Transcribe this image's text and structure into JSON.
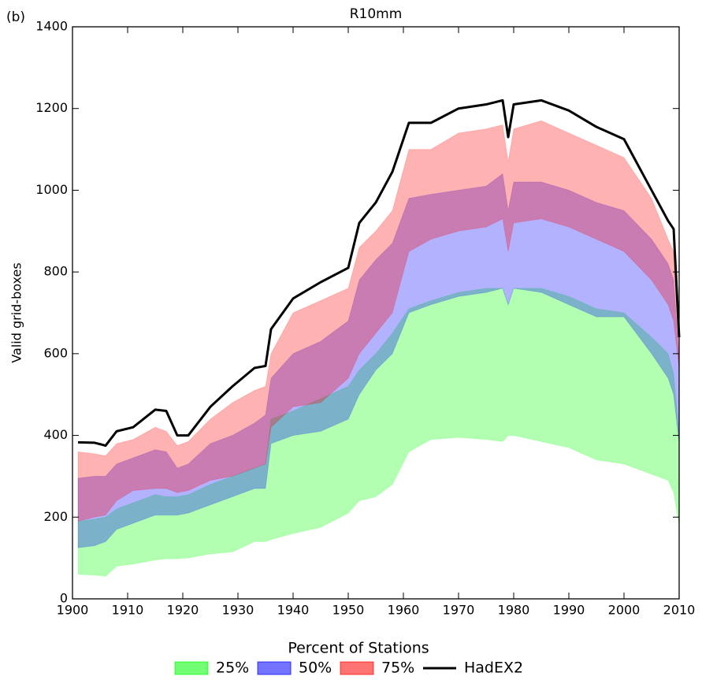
{
  "chart_data": {
    "type": "band",
    "panel_label": "(b)",
    "title": "R10mm",
    "y_label": "Valid grid-boxes",
    "legend_title": "Percent of Stations",
    "legend_position": "bottom",
    "x": [
      1901,
      1904,
      1906,
      1908,
      1911,
      1915,
      1917,
      1919,
      1921,
      1925,
      1929,
      1933,
      1935,
      1936,
      1940,
      1945,
      1950,
      1952,
      1955,
      1958,
      1961,
      1965,
      1970,
      1975,
      1978,
      1979,
      1980,
      1985,
      1990,
      1995,
      2000,
      2005,
      2008,
      2009,
      2010
    ],
    "xlim": [
      1900,
      2010
    ],
    "xticks": [
      1900,
      1910,
      1920,
      1930,
      1940,
      1950,
      1960,
      1970,
      1980,
      1990,
      2000,
      2010
    ],
    "ylim": [
      0,
      1400
    ],
    "yticks": [
      0,
      200,
      400,
      600,
      800,
      1000,
      1200,
      1400
    ],
    "series": [
      {
        "name": "25%",
        "color": "#00ff00",
        "lower": [
          60,
          58,
          55,
          80,
          85,
          95,
          98,
          98,
          100,
          110,
          115,
          140,
          140,
          145,
          160,
          175,
          210,
          240,
          250,
          280,
          360,
          390,
          395,
          390,
          385,
          400,
          400,
          385,
          370,
          340,
          330,
          305,
          290,
          260,
          180
        ],
        "upper": [
          190,
          195,
          200,
          220,
          235,
          255,
          250,
          250,
          255,
          280,
          300,
          320,
          330,
          440,
          460,
          490,
          520,
          560,
          600,
          650,
          710,
          730,
          750,
          760,
          760,
          720,
          760,
          760,
          740,
          710,
          700,
          640,
          600,
          550,
          400
        ]
      },
      {
        "name": "50%",
        "color": "#0000ff",
        "lower": [
          125,
          130,
          140,
          170,
          185,
          205,
          205,
          205,
          210,
          230,
          250,
          270,
          270,
          380,
          400,
          410,
          440,
          500,
          560,
          600,
          700,
          720,
          740,
          750,
          760,
          720,
          760,
          750,
          720,
          690,
          690,
          600,
          540,
          500,
          380
        ],
        "upper": [
          295,
          300,
          300,
          330,
          345,
          365,
          360,
          320,
          330,
          380,
          400,
          430,
          450,
          540,
          600,
          630,
          680,
          780,
          830,
          870,
          980,
          990,
          1000,
          1010,
          1040,
          950,
          1020,
          1020,
          1000,
          970,
          950,
          880,
          820,
          780,
          580
        ]
      },
      {
        "name": "75%",
        "color": "#ff0000",
        "lower": [
          190,
          200,
          205,
          240,
          265,
          270,
          270,
          260,
          265,
          290,
          300,
          320,
          330,
          420,
          470,
          480,
          540,
          600,
          650,
          700,
          850,
          880,
          900,
          910,
          930,
          850,
          920,
          930,
          910,
          880,
          850,
          780,
          720,
          680,
          560
        ],
        "upper": [
          360,
          355,
          350,
          380,
          390,
          420,
          410,
          375,
          385,
          440,
          480,
          510,
          520,
          600,
          700,
          730,
          760,
          860,
          900,
          950,
          1100,
          1100,
          1140,
          1150,
          1160,
          1070,
          1150,
          1170,
          1140,
          1110,
          1080,
          980,
          880,
          850,
          600
        ]
      },
      {
        "name": "HadEX2",
        "color": "#000000",
        "values": [
          383,
          382,
          375,
          410,
          420,
          463,
          460,
          400,
          400,
          470,
          520,
          565,
          570,
          660,
          735,
          775,
          810,
          920,
          970,
          1045,
          1165,
          1165,
          1200,
          1210,
          1220,
          1130,
          1210,
          1220,
          1195,
          1155,
          1125,
          1000,
          925,
          905,
          640
        ]
      }
    ]
  }
}
